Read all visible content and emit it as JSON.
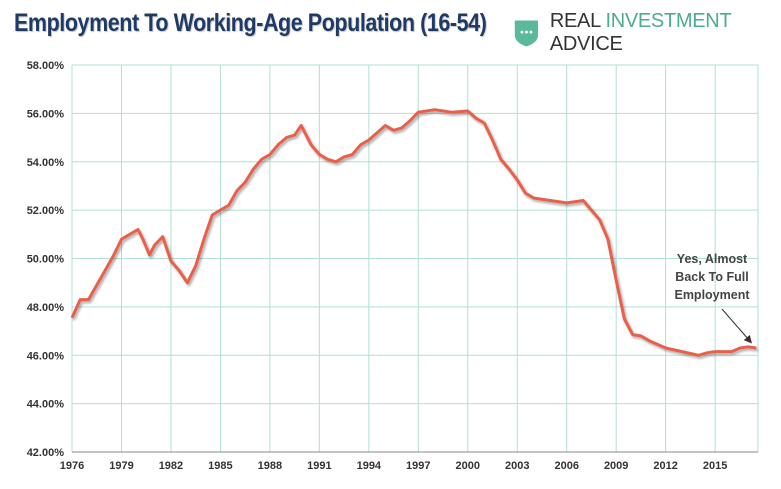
{
  "title": "Employment To Working-Age Population (16-54)",
  "brand": {
    "part1": "REAL ",
    "part2": "INVESTMENT",
    "part3": " ADVICE",
    "icon": "shield-chat-icon"
  },
  "chart_data": {
    "type": "line",
    "title": "Employment To Working-Age Population (16-54)",
    "xlabel": "",
    "ylabel": "",
    "xlim": [
      1976,
      2017.6
    ],
    "ylim": [
      42,
      58
    ],
    "grid": true,
    "x_ticks": [
      "1976",
      "1979",
      "1982",
      "1985",
      "1988",
      "1991",
      "1994",
      "1997",
      "2000",
      "2003",
      "2006",
      "2009",
      "2012",
      "2015"
    ],
    "y_ticks": [
      "42.00%",
      "44.00%",
      "46.00%",
      "48.00%",
      "50.00%",
      "52.00%",
      "54.00%",
      "56.00%",
      "58.00%"
    ],
    "colors": {
      "line": "#e8604c",
      "grid": "#b2e0d4"
    },
    "series": [
      {
        "name": "Employment to working-age population (16-54)",
        "x": [
          1976,
          1976.5,
          1977,
          1977.5,
          1978,
          1978.5,
          1979,
          1979.5,
          1980,
          1980.3,
          1980.7,
          1981,
          1981.5,
          1982,
          1982.5,
          1983,
          1983.5,
          1984,
          1984.5,
          1985,
          1985.5,
          1986,
          1986.5,
          1987,
          1987.5,
          1988,
          1988.5,
          1989,
          1989.5,
          1989.9,
          1990.5,
          1991,
          1991.5,
          1992,
          1992.5,
          1993,
          1993.5,
          1994,
          1994.5,
          1995,
          1995.5,
          1996,
          1996.5,
          1997,
          1998,
          1999,
          2000,
          2000.5,
          2001,
          2001.5,
          2002,
          2002.5,
          2003,
          2003.5,
          2004,
          2005,
          2006,
          2007,
          2007.5,
          2008,
          2008.5,
          2009,
          2009.5,
          2010,
          2010.5,
          2011,
          2012,
          2013,
          2014,
          2014.5,
          2015,
          2016,
          2016.5,
          2017,
          2017.5
        ],
        "values": [
          47.55,
          48.3,
          48.3,
          48.9,
          49.5,
          50.1,
          50.8,
          51.0,
          51.2,
          50.8,
          50.15,
          50.55,
          50.9,
          49.9,
          49.5,
          49.0,
          49.7,
          50.8,
          51.8,
          52.0,
          52.2,
          52.8,
          53.15,
          53.7,
          54.1,
          54.3,
          54.7,
          55.0,
          55.1,
          55.5,
          54.7,
          54.3,
          54.1,
          54.0,
          54.2,
          54.3,
          54.7,
          54.9,
          55.2,
          55.5,
          55.3,
          55.4,
          55.7,
          56.05,
          56.15,
          56.05,
          56.1,
          55.8,
          55.6,
          54.9,
          54.1,
          53.7,
          53.25,
          52.7,
          52.5,
          52.4,
          52.3,
          52.4,
          52.0,
          51.6,
          50.8,
          49.1,
          47.5,
          46.85,
          46.8,
          46.6,
          46.3,
          46.15,
          46.0,
          46.1,
          46.15,
          46.15,
          46.3,
          46.35,
          46.3
        ]
      }
    ],
    "annotations": [
      {
        "lines": [
          "Yes, Almost",
          "Back To Full",
          "Employment"
        ],
        "points_to": [
          2017.4,
          46.3
        ]
      }
    ]
  }
}
